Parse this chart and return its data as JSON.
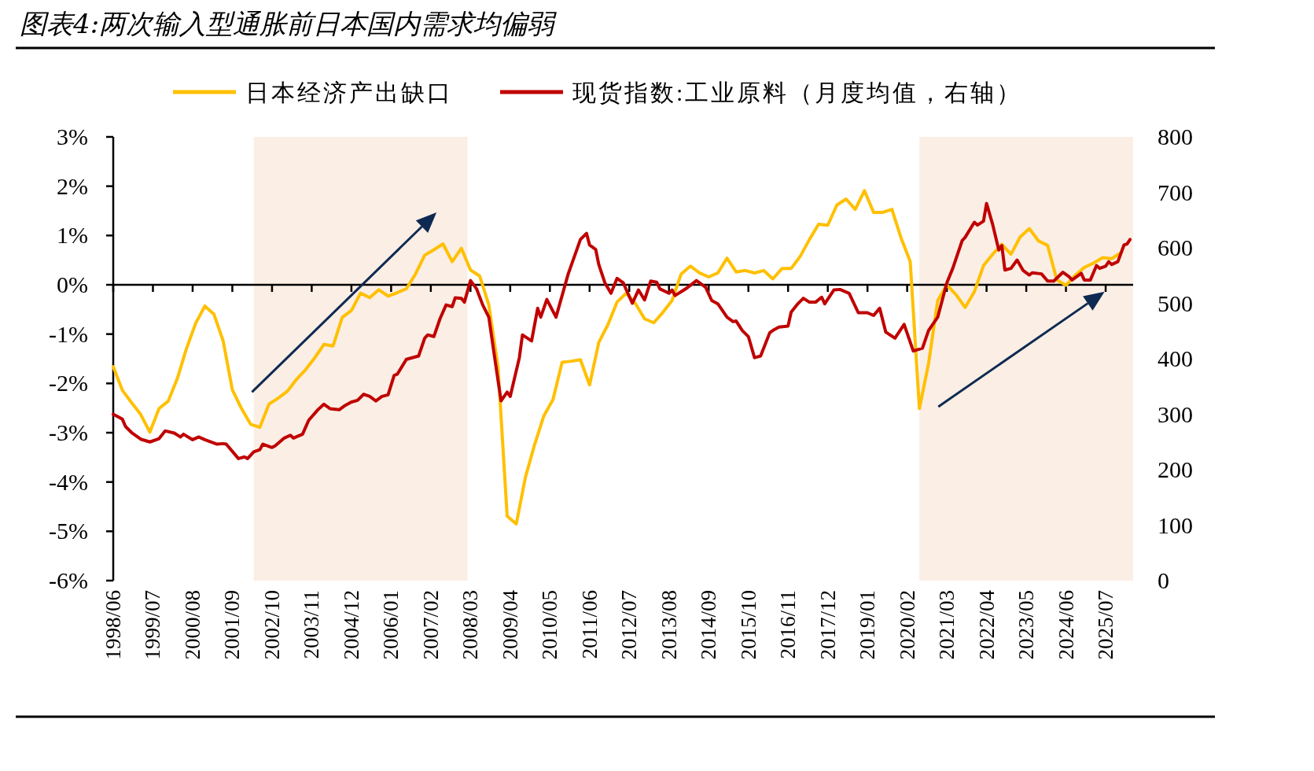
{
  "chart_data": {
    "type": "line",
    "title": "图表4:两次输入型通胀前日本国内需求均偏弱",
    "legend": "top",
    "xlim": [
      "1998-06",
      "2026-04"
    ],
    "xticks": [
      {
        "value": "1998-06",
        "label": "1998/06"
      },
      {
        "value": "1999-07",
        "label": "1999/07"
      },
      {
        "value": "2000-08",
        "label": "2000/08"
      },
      {
        "value": "2001-09",
        "label": "2001/09"
      },
      {
        "value": "2002-10",
        "label": "2002/10"
      },
      {
        "value": "2003-11",
        "label": "2003/11"
      },
      {
        "value": "2004-12",
        "label": "2004/12"
      },
      {
        "value": "2006-01",
        "label": "2006/01"
      },
      {
        "value": "2007-02",
        "label": "2007/02"
      },
      {
        "value": "2008-03",
        "label": "2008/03"
      },
      {
        "value": "2009-04",
        "label": "2009/04"
      },
      {
        "value": "2010-05",
        "label": "2010/05"
      },
      {
        "value": "2011-06",
        "label": "2011/06"
      },
      {
        "value": "2012-07",
        "label": "2012/07"
      },
      {
        "value": "2013-08",
        "label": "2013/08"
      },
      {
        "value": "2014-09",
        "label": "2014/09"
      },
      {
        "value": "2015-10",
        "label": "2015/10"
      },
      {
        "value": "2016-11",
        "label": "2016/11"
      },
      {
        "value": "2017-12",
        "label": "2017/12"
      },
      {
        "value": "2019-01",
        "label": "2019/01"
      },
      {
        "value": "2020-02",
        "label": "2020/02"
      },
      {
        "value": "2021-03",
        "label": "2021/03"
      },
      {
        "value": "2022-04",
        "label": "2022/04"
      },
      {
        "value": "2023-05",
        "label": "2023/05"
      },
      {
        "value": "2024-06",
        "label": "2024/06"
      },
      {
        "value": "2025-07",
        "label": "2025/07"
      }
    ],
    "ylim": [
      -6,
      3
    ],
    "yticks": [
      {
        "value": 3,
        "label": "3%"
      },
      {
        "value": 2,
        "label": "2%"
      },
      {
        "value": 1,
        "label": "1%"
      },
      {
        "value": 0,
        "label": "0%"
      },
      {
        "value": -1,
        "label": "-1%"
      },
      {
        "value": -2,
        "label": "-2%"
      },
      {
        "value": -3,
        "label": "-3%"
      },
      {
        "value": -4,
        "label": "-4%"
      },
      {
        "value": -5,
        "label": "-5%"
      },
      {
        "value": -6,
        "label": "-6%"
      }
    ],
    "y2lim": [
      0,
      800
    ],
    "y2ticks": [
      0,
      100,
      200,
      300,
      400,
      500,
      600,
      700,
      800
    ],
    "bands": [
      {
        "axis": "x",
        "from": "2002-04",
        "to": "2008-02",
        "color": "#fbeee5"
      },
      {
        "axis": "x",
        "from": "2020-06",
        "to": "2026-04",
        "color": "#fbeee5"
      }
    ],
    "series": [
      {
        "name": "日本经济产出缺口",
        "color": "#ffc000",
        "x": [
          "1998-06",
          "1998-09",
          "1998-12",
          "1999-03",
          "1999-06",
          "1999-09",
          "1999-12",
          "2000-03",
          "2000-06",
          "2000-09",
          "2000-12",
          "2001-03",
          "2001-06",
          "2001-09",
          "2001-12",
          "2002-03",
          "2002-06",
          "2002-09",
          "2002-12",
          "2003-03",
          "2003-06",
          "2003-09",
          "2003-12",
          "2004-03",
          "2004-06",
          "2004-09",
          "2004-12",
          "2005-03",
          "2005-06",
          "2005-09",
          "2005-12",
          "2006-03",
          "2006-06",
          "2006-09",
          "2006-12",
          "2007-03",
          "2007-06",
          "2007-09",
          "2007-12",
          "2008-03",
          "2008-06",
          "2008-09",
          "2008-12",
          "2009-03",
          "2009-06",
          "2009-09",
          "2009-12",
          "2010-03",
          "2010-06",
          "2010-09",
          "2010-12",
          "2011-03",
          "2011-06",
          "2011-09",
          "2011-12",
          "2012-03",
          "2012-06",
          "2012-09",
          "2012-12",
          "2013-03",
          "2013-06",
          "2013-09",
          "2013-12",
          "2014-03",
          "2014-06",
          "2014-09",
          "2014-12",
          "2015-03",
          "2015-06",
          "2015-09",
          "2015-12",
          "2016-03",
          "2016-06",
          "2016-09",
          "2016-12",
          "2017-03",
          "2017-06",
          "2017-09",
          "2017-12",
          "2018-03",
          "2018-06",
          "2018-09",
          "2018-12",
          "2019-03",
          "2019-06",
          "2019-09",
          "2019-12",
          "2020-03",
          "2020-06",
          "2020-09",
          "2020-12",
          "2021-03",
          "2021-06",
          "2021-09",
          "2021-12",
          "2022-03",
          "2022-06",
          "2022-09",
          "2022-12",
          "2023-03",
          "2023-06",
          "2023-09",
          "2023-12",
          "2024-03",
          "2024-06",
          "2024-09",
          "2024-12",
          "2025-03",
          "2025-06",
          "2025-09",
          "2025-12"
        ],
        "values": [
          -1.66,
          -2.14,
          -2.39,
          -2.63,
          -2.99,
          -2.51,
          -2.36,
          -1.9,
          -1.29,
          -0.78,
          -0.43,
          -0.6,
          -1.14,
          -2.13,
          -2.51,
          -2.83,
          -2.89,
          -2.42,
          -2.3,
          -2.16,
          -1.92,
          -1.72,
          -1.48,
          -1.21,
          -1.24,
          -0.66,
          -0.52,
          -0.17,
          -0.26,
          -0.1,
          -0.23,
          -0.16,
          -0.08,
          0.22,
          0.6,
          0.71,
          0.83,
          0.47,
          0.74,
          0.3,
          0.18,
          -0.41,
          -1.66,
          -4.69,
          -4.85,
          -3.9,
          -3.24,
          -2.66,
          -2.33,
          -1.57,
          -1.55,
          -1.52,
          -2.03,
          -1.17,
          -0.81,
          -0.35,
          -0.17,
          -0.38,
          -0.69,
          -0.77,
          -0.56,
          -0.32,
          0.22,
          0.38,
          0.24,
          0.16,
          0.24,
          0.54,
          0.26,
          0.29,
          0.24,
          0.29,
          0.12,
          0.33,
          0.33,
          0.58,
          0.92,
          1.23,
          1.21,
          1.62,
          1.74,
          1.53,
          1.91,
          1.47,
          1.47,
          1.53,
          0.95,
          0.47,
          -2.51,
          -1.6,
          -0.32,
          0.0,
          -0.2,
          -0.46,
          -0.14,
          0.39,
          0.62,
          0.82,
          0.62,
          0.97,
          1.14,
          0.89,
          0.8,
          0.1,
          -0.01,
          0.19,
          0.35,
          0.44,
          0.55,
          0.53,
          0.65
        ]
      },
      {
        "name": "现货指数:工业原料（月度均值，右轴）",
        "color": "#c00000",
        "axis": "y2",
        "x": [
          "1998-06",
          "1998-09",
          "1998-10",
          "1998-12",
          "1999-03",
          "1999-06",
          "1999-09",
          "1999-11",
          "2000-02",
          "2000-04",
          "2000-05",
          "2000-08",
          "2000-10",
          "2000-12",
          "2001-04",
          "2001-06",
          "2001-07",
          "2001-11",
          "2002-01",
          "2002-02",
          "2002-04",
          "2002-06",
          "2002-07",
          "2002-10",
          "2002-11",
          "2003-02",
          "2003-04",
          "2003-05",
          "2003-08",
          "2003-10",
          "2004-01",
          "2004-03",
          "2004-05",
          "2004-08",
          "2004-10",
          "2004-12",
          "2005-02",
          "2005-04",
          "2005-06",
          "2005-08",
          "2005-10",
          "2005-12",
          "2006-02",
          "2006-03",
          "2006-06",
          "2006-10",
          "2006-12",
          "2007-01",
          "2007-03",
          "2007-05",
          "2007-07",
          "2007-09",
          "2007-10",
          "2007-12",
          "2008-01",
          "2008-03",
          "2008-05",
          "2008-07",
          "2008-09",
          "2008-11",
          "2009-01",
          "2009-03",
          "2009-04",
          "2009-07",
          "2009-08",
          "2009-11",
          "2010-01",
          "2010-02",
          "2010-04",
          "2010-07",
          "2010-11",
          "2011-03",
          "2011-05",
          "2011-06",
          "2011-08",
          "2011-09",
          "2011-11",
          "2012-01",
          "2012-03",
          "2012-05",
          "2012-08",
          "2012-10",
          "2012-12",
          "2013-02",
          "2013-04",
          "2013-05",
          "2013-08",
          "2013-09",
          "2013-10",
          "2013-12",
          "2014-02",
          "2014-05",
          "2014-08",
          "2014-10",
          "2014-12",
          "2015-03",
          "2015-05",
          "2015-06",
          "2015-08",
          "2015-10",
          "2015-12",
          "2016-02",
          "2016-05",
          "2016-06",
          "2016-08",
          "2016-11",
          "2016-12",
          "2017-02",
          "2017-04",
          "2017-06",
          "2017-08",
          "2017-10",
          "2017-11",
          "2018-02",
          "2018-04",
          "2018-07",
          "2018-10",
          "2019-01",
          "2019-03",
          "2019-05",
          "2019-07",
          "2019-10",
          "2020-01",
          "2020-04",
          "2020-07",
          "2020-09",
          "2020-12",
          "2021-03",
          "2021-05",
          "2021-08",
          "2021-09",
          "2021-12",
          "2022-01",
          "2022-03",
          "2022-04",
          "2022-06",
          "2022-08",
          "2022-09",
          "2022-10",
          "2022-12",
          "2023-02",
          "2023-04",
          "2023-06",
          "2023-07",
          "2023-10",
          "2023-12",
          "2024-02",
          "2024-05",
          "2024-07",
          "2024-08",
          "2024-11",
          "2024-12",
          "2025-02",
          "2025-04",
          "2025-05",
          "2025-07",
          "2025-08",
          "2025-09",
          "2025-11",
          "2026-01",
          "2026-02",
          "2026-03"
        ],
        "values": [
          300,
          291,
          278,
          267,
          255,
          250,
          256,
          270,
          266,
          259,
          264,
          254,
          259,
          254,
          246,
          247,
          246,
          220,
          223,
          220,
          232,
          236,
          246,
          240,
          243,
          257,
          262,
          257,
          264,
          289,
          308,
          318,
          310,
          308,
          316,
          322,
          325,
          336,
          332,
          324,
          332,
          335,
          370,
          372,
          399,
          405,
          437,
          443,
          440,
          472,
          497,
          494,
          510,
          509,
          502,
          541,
          526,
          497,
          475,
          399,
          324,
          340,
          332,
          402,
          443,
          432,
          491,
          475,
          507,
          475,
          553,
          615,
          626,
          605,
          597,
          570,
          537,
          518,
          545,
          537,
          500,
          524,
          506,
          540,
          538,
          526,
          518,
          524,
          514,
          521,
          528,
          541,
          529,
          505,
          499,
          475,
          467,
          468,
          451,
          440,
          402,
          405,
          447,
          451,
          457,
          459,
          484,
          498,
          509,
          502,
          502,
          511,
          499,
          524,
          525,
          518,
          483,
          483,
          478,
          491,
          448,
          437,
          462,
          414,
          419,
          451,
          475,
          537,
          564,
          613,
          619,
          646,
          641,
          648,
          680,
          642,
          596,
          604,
          560,
          563,
          578,
          559,
          551,
          555,
          553,
          540,
          540,
          556,
          548,
          542,
          554,
          542,
          542,
          568,
          563,
          567,
          575,
          570,
          575,
          605,
          607,
          615
        ]
      }
    ]
  }
}
